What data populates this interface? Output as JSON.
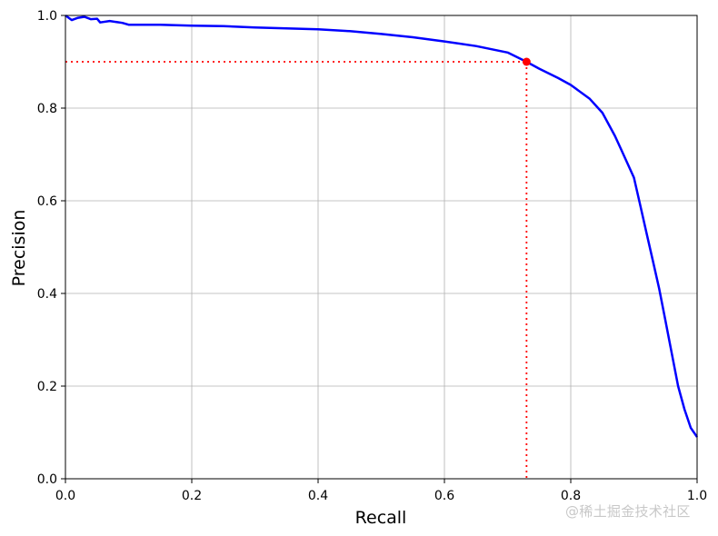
{
  "chart_data": {
    "type": "line",
    "title": "",
    "xlabel": "Recall",
    "ylabel": "Precision",
    "xlim": [
      0.0,
      1.0
    ],
    "ylim": [
      0.0,
      1.0
    ],
    "xticks": [
      "0.0",
      "0.2",
      "0.4",
      "0.6",
      "0.8",
      "1.0"
    ],
    "yticks": [
      "0.0",
      "0.2",
      "0.4",
      "0.6",
      "0.8",
      "1.0"
    ],
    "grid": true,
    "series": [
      {
        "color": "#0000ff",
        "x": [
          0.0,
          0.01,
          0.02,
          0.03,
          0.04,
          0.05,
          0.055,
          0.07,
          0.09,
          0.1,
          0.12,
          0.15,
          0.2,
          0.25,
          0.3,
          0.35,
          0.4,
          0.45,
          0.5,
          0.55,
          0.6,
          0.65,
          0.7,
          0.73,
          0.75,
          0.78,
          0.8,
          0.83,
          0.85,
          0.87,
          0.88,
          0.9,
          0.91,
          0.92,
          0.93,
          0.94,
          0.95,
          0.96,
          0.97,
          0.98,
          0.99,
          1.0
        ],
        "y": [
          1.0,
          0.99,
          0.995,
          0.997,
          0.992,
          0.993,
          0.985,
          0.988,
          0.984,
          0.98,
          0.98,
          0.98,
          0.978,
          0.977,
          0.974,
          0.972,
          0.97,
          0.966,
          0.96,
          0.953,
          0.944,
          0.934,
          0.92,
          0.9,
          0.885,
          0.865,
          0.85,
          0.82,
          0.79,
          0.74,
          0.71,
          0.65,
          0.59,
          0.53,
          0.47,
          0.41,
          0.34,
          0.27,
          0.2,
          0.15,
          0.11,
          0.09
        ]
      }
    ],
    "threshold_point": {
      "x": 0.73,
      "y": 0.9,
      "color": "#ff0000"
    },
    "watermark": "@稀土掘金技术社区"
  }
}
